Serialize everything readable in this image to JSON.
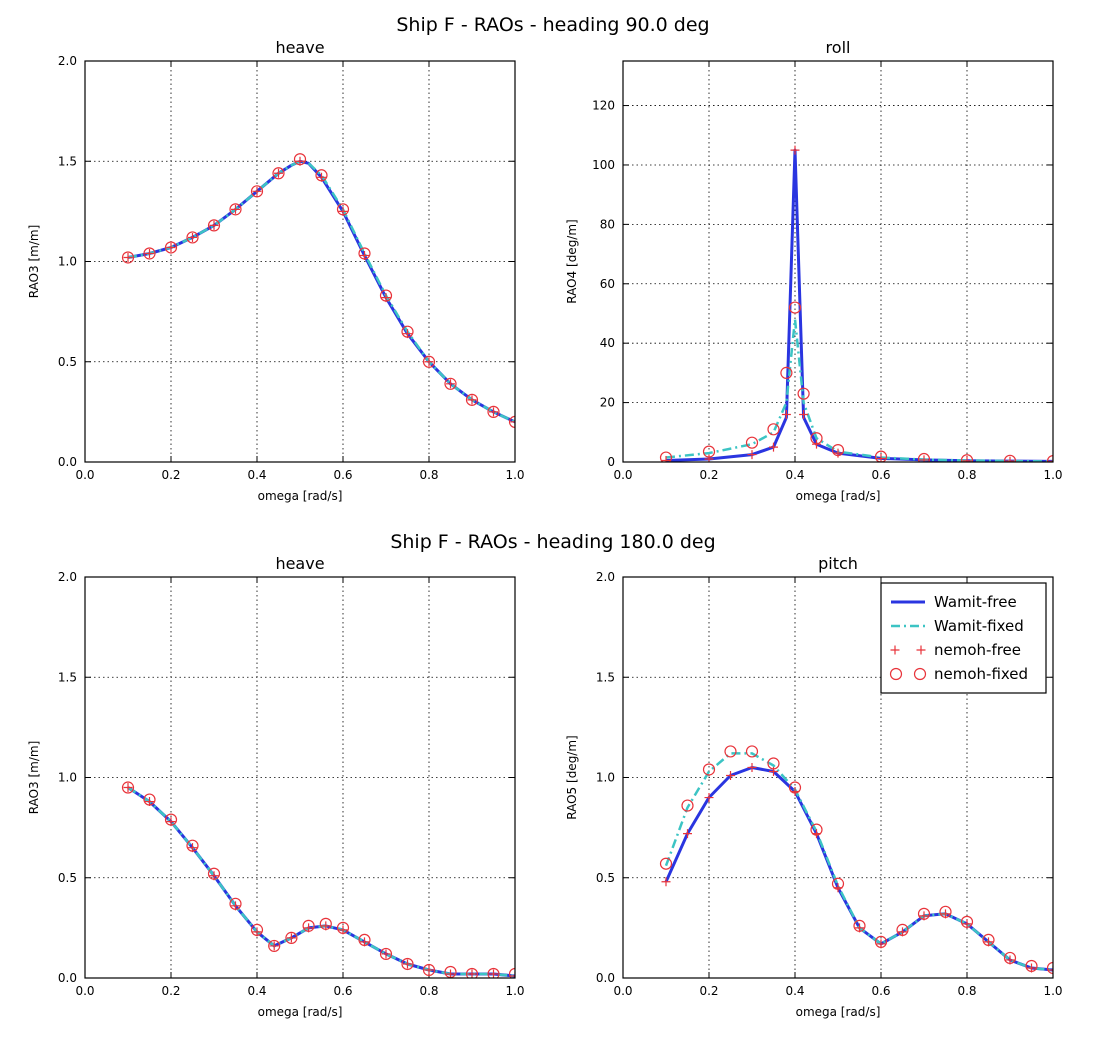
{
  "figures": [
    {
      "suptitle": "Ship F - RAOs - heading 90.0 deg"
    },
    {
      "suptitle": "Ship F - RAOs - heading 180.0 deg"
    }
  ],
  "legend": {
    "entries": [
      {
        "label": "Wamit-free",
        "style": "solid",
        "color": "#2a35e0"
      },
      {
        "label": "Wamit-fixed",
        "style": "dashdot",
        "color": "#3cc4c4"
      },
      {
        "label": "nemoh-free",
        "style": "plus",
        "color": "#e8333a"
      },
      {
        "label": "nemoh-fixed",
        "style": "circle",
        "color": "#e8333a"
      }
    ]
  },
  "chart_data": [
    {
      "type": "line",
      "title": "heave",
      "xlabel": "omega [rad/s]",
      "ylabel": "RAO3 [m/m]",
      "xlim": [
        0.0,
        1.0
      ],
      "ylim": [
        0.0,
        2.0
      ],
      "xticks": [
        "0.0",
        "0.2",
        "0.4",
        "0.6",
        "0.8",
        "1.0"
      ],
      "yticks": [
        "0.0",
        "0.5",
        "1.0",
        "1.5",
        "2.0"
      ],
      "grid": true,
      "series": [
        {
          "name": "Wamit-free",
          "x": [
            0.1,
            0.15,
            0.2,
            0.25,
            0.3,
            0.35,
            0.4,
            0.45,
            0.48,
            0.5,
            0.52,
            0.55,
            0.6,
            0.65,
            0.7,
            0.75,
            0.8,
            0.85,
            0.9,
            0.95,
            1.0
          ],
          "y": [
            1.02,
            1.04,
            1.07,
            1.12,
            1.18,
            1.26,
            1.35,
            1.44,
            1.48,
            1.5,
            1.49,
            1.42,
            1.25,
            1.03,
            0.82,
            0.64,
            0.5,
            0.39,
            0.31,
            0.25,
            0.2
          ]
        },
        {
          "name": "Wamit-fixed",
          "x": [
            0.1,
            0.15,
            0.2,
            0.25,
            0.3,
            0.35,
            0.4,
            0.45,
            0.48,
            0.5,
            0.52,
            0.55,
            0.6,
            0.65,
            0.7,
            0.75,
            0.8,
            0.85,
            0.9,
            0.95,
            1.0
          ],
          "y": [
            1.02,
            1.04,
            1.07,
            1.12,
            1.18,
            1.26,
            1.35,
            1.44,
            1.48,
            1.5,
            1.49,
            1.43,
            1.26,
            1.04,
            0.83,
            0.65,
            0.5,
            0.39,
            0.31,
            0.25,
            0.2
          ]
        },
        {
          "name": "nemoh-free",
          "x": [
            0.1,
            0.15,
            0.2,
            0.25,
            0.3,
            0.35,
            0.4,
            0.45,
            0.5,
            0.55,
            0.6,
            0.65,
            0.7,
            0.75,
            0.8,
            0.85,
            0.9,
            0.95,
            1.0
          ],
          "y": [
            1.02,
            1.04,
            1.07,
            1.12,
            1.18,
            1.26,
            1.35,
            1.44,
            1.5,
            1.42,
            1.25,
            1.03,
            0.82,
            0.64,
            0.5,
            0.39,
            0.31,
            0.25,
            0.2
          ]
        },
        {
          "name": "nemoh-fixed",
          "x": [
            0.1,
            0.15,
            0.2,
            0.25,
            0.3,
            0.35,
            0.4,
            0.45,
            0.5,
            0.55,
            0.6,
            0.65,
            0.7,
            0.75,
            0.8,
            0.85,
            0.9,
            0.95,
            1.0
          ],
          "y": [
            1.02,
            1.04,
            1.07,
            1.12,
            1.18,
            1.26,
            1.35,
            1.44,
            1.51,
            1.43,
            1.26,
            1.04,
            0.83,
            0.65,
            0.5,
            0.39,
            0.31,
            0.25,
            0.2
          ]
        }
      ]
    },
    {
      "type": "line",
      "title": "roll",
      "xlabel": "omega [rad/s]",
      "ylabel": "RAO4 [deg/m]",
      "xlim": [
        0.0,
        1.0
      ],
      "ylim": [
        0,
        135
      ],
      "xticks": [
        "0.0",
        "0.2",
        "0.4",
        "0.6",
        "0.8",
        "1.0"
      ],
      "yticks": [
        "0",
        "20",
        "40",
        "60",
        "80",
        "100",
        "120"
      ],
      "grid": true,
      "series": [
        {
          "name": "Wamit-free",
          "x": [
            0.1,
            0.2,
            0.3,
            0.35,
            0.38,
            0.4,
            0.42,
            0.45,
            0.5,
            0.6,
            0.7,
            0.8,
            0.9,
            1.0
          ],
          "y": [
            0.5,
            1.0,
            2.5,
            5.0,
            15.0,
            105.0,
            15.0,
            6.0,
            3.0,
            1.2,
            0.7,
            0.4,
            0.3,
            0.2
          ]
        },
        {
          "name": "Wamit-fixed",
          "x": [
            0.1,
            0.2,
            0.3,
            0.35,
            0.38,
            0.4,
            0.42,
            0.45,
            0.5,
            0.6,
            0.7,
            0.8,
            0.9,
            1.0
          ],
          "y": [
            1.5,
            3.0,
            6.0,
            10.0,
            20.0,
            48.0,
            20.0,
            8.0,
            3.5,
            1.5,
            0.8,
            0.5,
            0.3,
            0.2
          ]
        },
        {
          "name": "nemoh-free",
          "x": [
            0.1,
            0.2,
            0.3,
            0.35,
            0.38,
            0.4,
            0.42,
            0.45,
            0.5,
            0.6,
            0.7,
            0.8,
            0.9,
            1.0
          ],
          "y": [
            0.5,
            1.0,
            2.5,
            5.0,
            16.0,
            105.0,
            16.0,
            6.0,
            3.0,
            1.2,
            0.7,
            0.4,
            0.3,
            0.2
          ]
        },
        {
          "name": "nemoh-fixed",
          "x": [
            0.1,
            0.2,
            0.3,
            0.35,
            0.38,
            0.4,
            0.42,
            0.45,
            0.5,
            0.6,
            0.7,
            0.8,
            0.9,
            1.0
          ],
          "y": [
            1.5,
            3.5,
            6.5,
            11.0,
            30.0,
            52.0,
            23.0,
            8.0,
            4.0,
            1.8,
            1.0,
            0.6,
            0.4,
            0.3
          ]
        }
      ]
    },
    {
      "type": "line",
      "title": "heave",
      "xlabel": "omega [rad/s]",
      "ylabel": "RAO3 [m/m]",
      "xlim": [
        0.0,
        1.0
      ],
      "ylim": [
        0.0,
        2.0
      ],
      "xticks": [
        "0.0",
        "0.2",
        "0.4",
        "0.6",
        "0.8",
        "1.0"
      ],
      "yticks": [
        "0.0",
        "0.5",
        "1.0",
        "1.5",
        "2.0"
      ],
      "grid": true,
      "series": [
        {
          "name": "Wamit-free",
          "x": [
            0.1,
            0.15,
            0.2,
            0.25,
            0.3,
            0.35,
            0.4,
            0.44,
            0.48,
            0.52,
            0.56,
            0.6,
            0.65,
            0.7,
            0.75,
            0.8,
            0.85,
            0.9,
            0.95,
            1.0
          ],
          "y": [
            0.95,
            0.88,
            0.78,
            0.65,
            0.51,
            0.36,
            0.23,
            0.16,
            0.2,
            0.25,
            0.26,
            0.24,
            0.18,
            0.12,
            0.07,
            0.04,
            0.02,
            0.02,
            0.02,
            0.01
          ]
        },
        {
          "name": "Wamit-fixed",
          "x": [
            0.1,
            0.15,
            0.2,
            0.25,
            0.3,
            0.35,
            0.4,
            0.44,
            0.48,
            0.52,
            0.56,
            0.6,
            0.65,
            0.7,
            0.75,
            0.8,
            0.85,
            0.9,
            0.95,
            1.0
          ],
          "y": [
            0.95,
            0.88,
            0.78,
            0.65,
            0.51,
            0.36,
            0.23,
            0.16,
            0.2,
            0.25,
            0.26,
            0.24,
            0.18,
            0.12,
            0.07,
            0.04,
            0.02,
            0.02,
            0.02,
            0.01
          ]
        },
        {
          "name": "nemoh-free",
          "x": [
            0.1,
            0.15,
            0.2,
            0.25,
            0.3,
            0.35,
            0.4,
            0.44,
            0.48,
            0.52,
            0.56,
            0.6,
            0.65,
            0.7,
            0.75,
            0.8,
            0.85,
            0.9,
            0.95,
            1.0
          ],
          "y": [
            0.95,
            0.88,
            0.78,
            0.65,
            0.51,
            0.36,
            0.23,
            0.16,
            0.2,
            0.25,
            0.26,
            0.24,
            0.18,
            0.12,
            0.07,
            0.04,
            0.02,
            0.02,
            0.02,
            0.01
          ]
        },
        {
          "name": "nemoh-fixed",
          "x": [
            0.1,
            0.15,
            0.2,
            0.25,
            0.3,
            0.35,
            0.4,
            0.44,
            0.48,
            0.52,
            0.56,
            0.6,
            0.65,
            0.7,
            0.75,
            0.8,
            0.85,
            0.9,
            0.95,
            1.0
          ],
          "y": [
            0.95,
            0.89,
            0.79,
            0.66,
            0.52,
            0.37,
            0.24,
            0.16,
            0.2,
            0.26,
            0.27,
            0.25,
            0.19,
            0.12,
            0.07,
            0.04,
            0.03,
            0.02,
            0.02,
            0.02
          ]
        }
      ]
    },
    {
      "type": "line",
      "title": "pitch",
      "xlabel": "omega [rad/s]",
      "ylabel": "RAO5 [deg/m]",
      "xlim": [
        0.0,
        1.0
      ],
      "ylim": [
        0.0,
        2.0
      ],
      "xticks": [
        "0.0",
        "0.2",
        "0.4",
        "0.6",
        "0.8",
        "1.0"
      ],
      "yticks": [
        "0.0",
        "0.5",
        "1.0",
        "1.5",
        "2.0"
      ],
      "grid": true,
      "series": [
        {
          "name": "Wamit-free",
          "x": [
            0.1,
            0.15,
            0.2,
            0.25,
            0.3,
            0.35,
            0.4,
            0.45,
            0.5,
            0.55,
            0.6,
            0.65,
            0.7,
            0.75,
            0.8,
            0.85,
            0.9,
            0.95,
            1.0
          ],
          "y": [
            0.48,
            0.72,
            0.9,
            1.01,
            1.05,
            1.03,
            0.93,
            0.72,
            0.45,
            0.25,
            0.17,
            0.23,
            0.31,
            0.32,
            0.27,
            0.18,
            0.09,
            0.05,
            0.04
          ]
        },
        {
          "name": "Wamit-fixed",
          "x": [
            0.1,
            0.15,
            0.2,
            0.25,
            0.3,
            0.35,
            0.4,
            0.45,
            0.5,
            0.55,
            0.6,
            0.65,
            0.7,
            0.75,
            0.8,
            0.85,
            0.9,
            0.95,
            1.0
          ],
          "y": [
            0.56,
            0.85,
            1.03,
            1.12,
            1.12,
            1.06,
            0.94,
            0.73,
            0.46,
            0.25,
            0.17,
            0.23,
            0.31,
            0.32,
            0.27,
            0.18,
            0.09,
            0.05,
            0.04
          ]
        },
        {
          "name": "nemoh-free",
          "x": [
            0.1,
            0.15,
            0.2,
            0.25,
            0.3,
            0.35,
            0.4,
            0.45,
            0.5,
            0.55,
            0.6,
            0.65,
            0.7,
            0.75,
            0.8,
            0.85,
            0.9,
            0.95,
            1.0
          ],
          "y": [
            0.48,
            0.72,
            0.9,
            1.01,
            1.05,
            1.03,
            0.93,
            0.72,
            0.45,
            0.25,
            0.17,
            0.23,
            0.31,
            0.32,
            0.27,
            0.18,
            0.09,
            0.05,
            0.04
          ]
        },
        {
          "name": "nemoh-fixed",
          "x": [
            0.1,
            0.15,
            0.2,
            0.25,
            0.3,
            0.35,
            0.4,
            0.45,
            0.5,
            0.55,
            0.6,
            0.65,
            0.7,
            0.75,
            0.8,
            0.85,
            0.9,
            0.95,
            1.0
          ],
          "y": [
            0.57,
            0.86,
            1.04,
            1.13,
            1.13,
            1.07,
            0.95,
            0.74,
            0.47,
            0.26,
            0.18,
            0.24,
            0.32,
            0.33,
            0.28,
            0.19,
            0.1,
            0.06,
            0.05
          ]
        }
      ]
    }
  ]
}
